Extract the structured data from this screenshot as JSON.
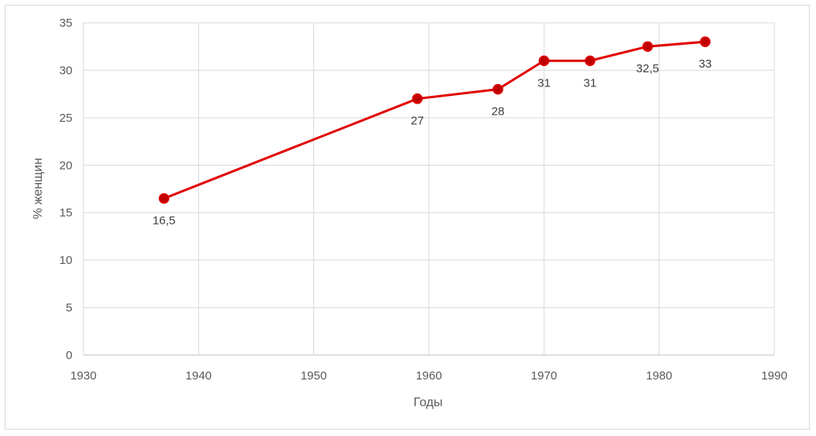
{
  "chart_data": {
    "type": "line",
    "xlabel": "Годы",
    "ylabel": "% женщин",
    "xlim": [
      1930,
      1990
    ],
    "ylim": [
      0,
      35
    ],
    "x_ticks": [
      1930,
      1940,
      1950,
      1960,
      1970,
      1980,
      1990
    ],
    "y_ticks": [
      0,
      5,
      10,
      15,
      20,
      25,
      30,
      35
    ],
    "grid": true,
    "legend": "none",
    "series": [
      {
        "color": "#e00000",
        "marker_color": "#c00000",
        "x": [
          1937,
          1959,
          1966,
          1970,
          1974,
          1979,
          1984
        ],
        "y": [
          16.5,
          27,
          28,
          31,
          31,
          32.5,
          33
        ],
        "labels": [
          "16,5",
          "27",
          "28",
          "31",
          "31",
          "32,5",
          "33"
        ]
      }
    ]
  }
}
